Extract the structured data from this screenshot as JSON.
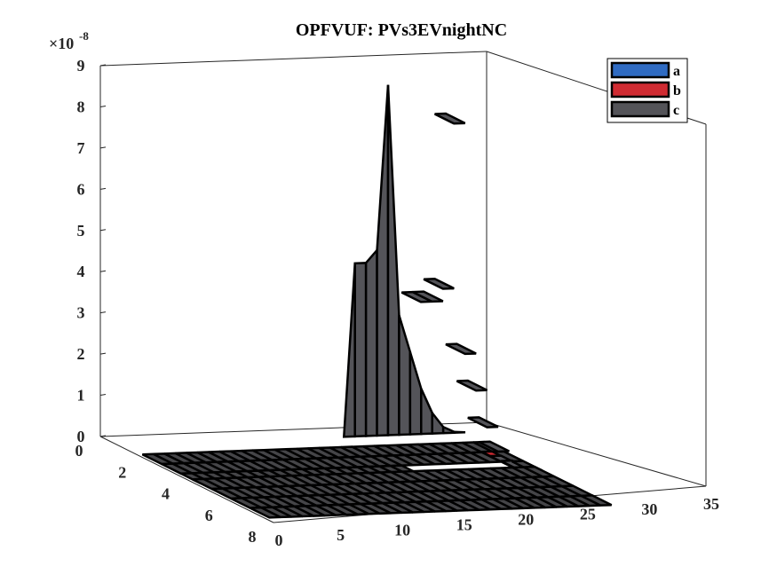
{
  "chart_data": {
    "type": "bar3d",
    "title": "OPFVUF: PVs3EVnightNC",
    "z_exponent_label": "×10",
    "z_exponent_power": "-8",
    "x_ticks": [
      "0",
      "5",
      "10",
      "15",
      "20",
      "25",
      "30",
      "35"
    ],
    "y_ticks": [
      "0",
      "2",
      "4",
      "6",
      "8"
    ],
    "z_ticks": [
      "0",
      "1",
      "2",
      "3",
      "4",
      "5",
      "6",
      "7",
      "8",
      "9"
    ],
    "xlim": [
      0,
      35
    ],
    "ylim": [
      0,
      9
    ],
    "zlim": [
      0,
      9e-08
    ],
    "x_categories": [
      1,
      2,
      3,
      4,
      5,
      6,
      7,
      8,
      9,
      10,
      11,
      12,
      13,
      14,
      15,
      16,
      17,
      18,
      19,
      20,
      21,
      22,
      23,
      24,
      25,
      26,
      27,
      28,
      29,
      30,
      31
    ],
    "series": [
      {
        "name": "a",
        "color": "#2f6bc2",
        "y_index": 1,
        "values": [
          0,
          0,
          0,
          0,
          0,
          0,
          0,
          0,
          0,
          0,
          0,
          0,
          0,
          0,
          0,
          0,
          0,
          0,
          0,
          0,
          0,
          0,
          0,
          0,
          0,
          0,
          0,
          0,
          0,
          0,
          0
        ]
      },
      {
        "name": "b",
        "color": "#d02b32",
        "y_index": 2,
        "values": [
          0,
          0,
          0,
          0,
          0,
          0,
          0,
          0,
          0,
          0,
          0,
          0,
          0,
          0,
          0,
          0,
          0,
          0,
          0,
          0,
          0,
          0,
          0,
          0,
          0,
          0,
          0,
          0,
          0,
          1e-10,
          0
        ]
      },
      {
        "name": "c",
        "color": "#545459",
        "y_index": 3,
        "values": [
          0,
          0,
          0,
          0,
          0,
          0,
          0,
          0,
          0,
          0,
          0,
          0,
          0,
          0,
          0,
          0,
          0,
          0,
          0,
          0,
          4.2e-08,
          4.2e-08,
          4.5e-08,
          8.5e-08,
          2.9e-08,
          2e-08,
          1.1e-08,
          5e-09,
          1.5e-09,
          2e-10,
          0
        ]
      }
    ],
    "legend_position": "top-right",
    "grid": false
  }
}
